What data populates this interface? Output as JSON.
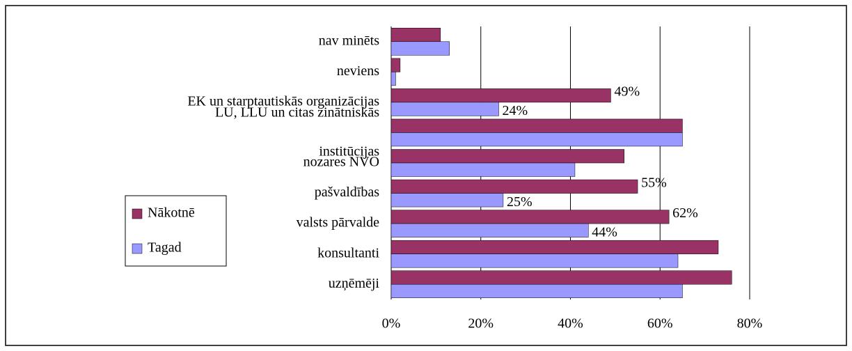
{
  "chart_data": {
    "type": "barh",
    "categories": [
      "nav minēts",
      "neviens",
      "EK un starptautiskās organizācijas",
      "LU, LLU un citas zinātniskās\ninstitūcijas",
      "nozares NVO",
      "pašvaldības",
      "valsts pārvalde",
      "konsultanti",
      "uzņēmēji"
    ],
    "series": [
      {
        "name": "Nākotnē",
        "color": "#993366",
        "values": [
          11,
          2,
          49,
          65,
          52,
          55,
          62,
          73,
          76
        ],
        "value_labels": [
          null,
          null,
          "49%",
          null,
          null,
          "55%",
          "62%",
          null,
          null
        ]
      },
      {
        "name": "Tagad",
        "color": "#9999ff",
        "values": [
          13,
          1,
          24,
          65,
          41,
          25,
          44,
          64,
          65
        ],
        "value_labels": [
          null,
          null,
          "24%",
          null,
          null,
          "25%",
          "44%",
          null,
          null
        ]
      }
    ],
    "xlim": [
      0,
      80
    ],
    "xticks": [
      {
        "value": 0,
        "label": "0%"
      },
      {
        "value": 20,
        "label": "20%"
      },
      {
        "value": 40,
        "label": "40%"
      },
      {
        "value": 60,
        "label": "60%"
      },
      {
        "value": 80,
        "label": "80%"
      }
    ],
    "grid": true,
    "legend": "left"
  }
}
